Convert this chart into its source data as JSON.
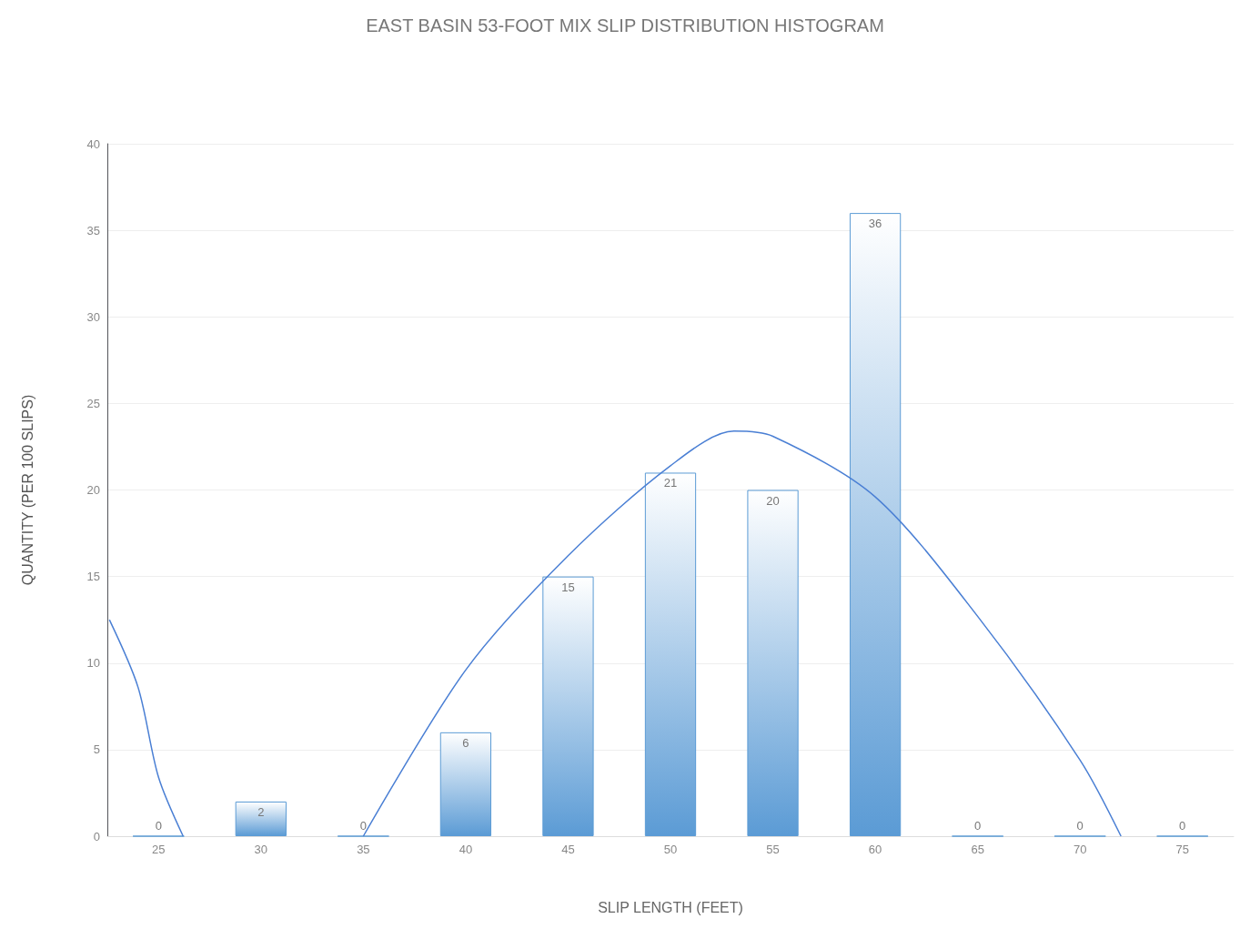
{
  "chart_data": {
    "type": "bar",
    "title": "EAST BASIN 53-FOOT MIX SLIP DISTRIBUTION HISTOGRAM",
    "xlabel": "SLIP LENGTH (FEET)",
    "ylabel": "QUANTITY (PER 100 SLIPS)",
    "x": [
      25,
      30,
      35,
      40,
      45,
      50,
      55,
      60,
      65,
      70,
      75
    ],
    "series": [
      {
        "color": "#5b9bd5",
        "values": [
          0,
          2,
          0,
          6,
          15,
          21,
          20,
          36,
          0,
          0,
          0
        ],
        "value_labels": [
          "0",
          "2",
          "0",
          "6",
          "15",
          "21",
          "20",
          "36",
          "0",
          "0",
          "0"
        ]
      },
      {
        "type": "line",
        "color": "#4a7fd4",
        "x": [
          22.6,
          24,
          25,
          26.2,
          30,
          35,
          40,
          45,
          50,
          53.1,
          55,
          60,
          65,
          70,
          72
        ],
        "values": [
          12.5,
          8.6,
          3.4,
          0,
          null,
          0,
          9.6,
          16.2,
          21.4,
          23.4,
          23.1,
          19.6,
          12.7,
          4.4,
          0
        ]
      }
    ],
    "xlim": [
      22.5,
      77.5
    ],
    "xticks": [
      25,
      30,
      35,
      40,
      45,
      50,
      55,
      60,
      65,
      70,
      75
    ],
    "ylim": [
      0,
      40
    ],
    "yticks": [
      0,
      5,
      10,
      15,
      20,
      25,
      30,
      35,
      40
    ],
    "grid": "y",
    "marker": "none"
  }
}
